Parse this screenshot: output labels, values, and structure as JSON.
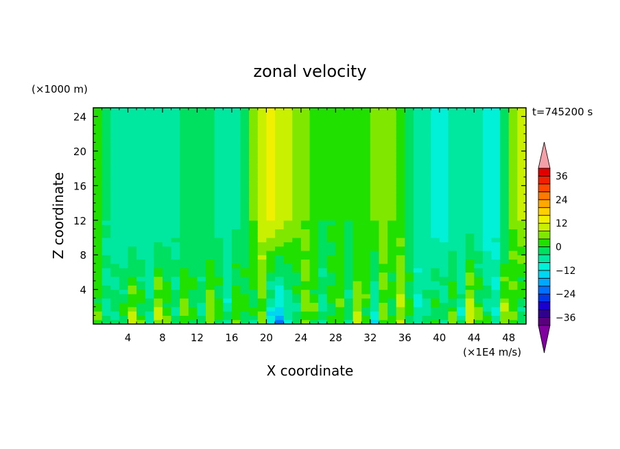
{
  "chart_data": {
    "type": "heatmap",
    "title": "zonal velocity",
    "xlabel": "X coordinate",
    "ylabel": "Z coordinate",
    "y_unit_label": "(×1000 m)",
    "x_unit_label": "(×1E4 m/s)",
    "time_label": "t=745200 s",
    "xlim": [
      0,
      50
    ],
    "ylim": [
      0,
      25
    ],
    "x_ticks": [
      4,
      8,
      12,
      16,
      20,
      24,
      28,
      32,
      36,
      40,
      44,
      48
    ],
    "y_ticks": [
      4,
      8,
      12,
      16,
      20,
      24
    ],
    "colorbar": {
      "min": -40,
      "max": 40,
      "interval": 4,
      "tick_labels": [
        {
          "value": 36,
          "text": "36"
        },
        {
          "value": 24,
          "text": "24"
        },
        {
          "value": 12,
          "text": "12"
        },
        {
          "value": 0,
          "text": "0"
        },
        {
          "value": -12,
          "text": "−12"
        },
        {
          "value": -24,
          "text": "−24"
        },
        {
          "value": -36,
          "text": "−36"
        }
      ],
      "colors": [
        "#5a007f",
        "#30008f",
        "#1a00d0",
        "#0038e8",
        "#0070ff",
        "#00a8ff",
        "#00d6f0",
        "#00f0d8",
        "#00e8a0",
        "#00e060",
        "#20e000",
        "#80e800",
        "#c8f000",
        "#f0f000",
        "#ffd000",
        "#ffa800",
        "#ff7800",
        "#ff4800",
        "#f02000",
        "#e00000"
      ],
      "over_color": "#f4a0a8",
      "under_color": "#8000a0"
    },
    "field": {
      "x_columns": [
        0.5,
        1.5,
        2.5,
        3.5,
        4.5,
        5.5,
        6.5,
        7.5,
        8.5,
        9.5,
        10.5,
        11.5,
        12.5,
        13.5,
        14.5,
        15.5,
        16.5,
        17.5,
        18.5,
        19.5,
        20.5,
        21.5,
        22.5,
        23.5,
        24.5,
        25.5,
        26.5,
        27.5,
        28.5,
        29.5,
        30.5,
        31.5,
        32.5,
        33.5,
        34.5,
        35.5,
        36.5,
        37.5,
        38.5,
        39.5,
        40.5,
        41.5,
        42.5,
        43.5,
        44.5,
        45.5,
        46.5,
        47.5,
        48.5,
        49.5
      ],
      "upper_profile_z_12_to_25": [
        1,
        -4,
        -6,
        -7,
        -7,
        -8,
        -8,
        -7,
        -6,
        -5,
        -4,
        -2,
        -1,
        -3,
        -5,
        -6,
        -5,
        -2,
        4,
        10,
        12,
        10,
        8,
        6,
        4,
        2,
        0,
        0,
        0,
        0,
        0,
        2,
        4,
        6,
        4,
        2,
        -2,
        -6,
        -8,
        -10,
        -10,
        -8,
        -5,
        -6,
        -8,
        -10,
        -9,
        -4,
        4,
        8
      ],
      "lower_profile_z_0_to_12": [
        2,
        -4,
        -2,
        0,
        8,
        2,
        -4,
        10,
        4,
        -2,
        6,
        0,
        -4,
        8,
        2,
        -6,
        4,
        0,
        -2,
        2,
        -12,
        -18,
        -10,
        -4,
        6,
        2,
        -6,
        0,
        4,
        -4,
        8,
        2,
        -10,
        4,
        -2,
        10,
        0,
        -8,
        -4,
        2,
        -2,
        4,
        -6,
        12,
        4,
        -2,
        -6,
        8,
        2,
        -4
      ],
      "note_values": "zonal velocity estimated per column, in colorbar units"
    }
  }
}
